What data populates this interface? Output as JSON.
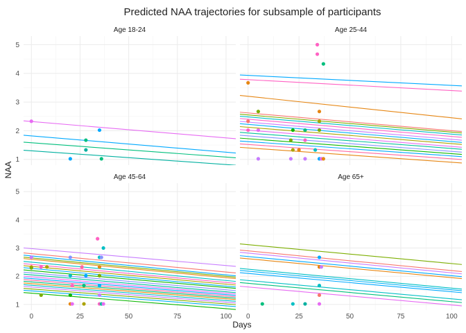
{
  "chart_data": {
    "type": "line",
    "title": "Predicted NAA trajectories for subsample of participants",
    "xlabel": "Days",
    "ylabel": "NAA",
    "xlim": [
      -4,
      105
    ],
    "ylim": [
      0.8,
      5.3
    ],
    "xticks": [
      "0",
      "25",
      "50",
      "75",
      "100"
    ],
    "yticks": [
      "1",
      "2",
      "3",
      "4",
      "5"
    ],
    "grid": true,
    "facets": [
      {
        "label": "Age 18-24",
        "lines": [
          {
            "color": "#E76BF3",
            "y0": 2.32,
            "y1": 1.75
          },
          {
            "color": "#00A9FF",
            "y0": 1.82,
            "y1": 1.25
          },
          {
            "color": "#00BF7D",
            "y0": 1.58,
            "y1": 1.08
          },
          {
            "color": "#00B0A0",
            "y0": 1.3,
            "y1": 0.82
          }
        ],
        "points": [
          {
            "x": 0,
            "y": 2.33,
            "color": "#E76BF3"
          },
          {
            "x": 20,
            "y": 1.02,
            "color": "#00A9FF"
          },
          {
            "x": 28,
            "y": 1.67,
            "color": "#00BF7D"
          },
          {
            "x": 28,
            "y": 1.33,
            "color": "#00B0A0"
          },
          {
            "x": 35,
            "y": 2.02,
            "color": "#00A9FF"
          },
          {
            "x": 36,
            "y": 1.02,
            "color": "#00BF7D"
          }
        ]
      },
      {
        "label": "Age 25-44",
        "lines": [
          {
            "color": "#00A9FF",
            "y0": 3.93,
            "y1": 3.58
          },
          {
            "color": "#FF61C3",
            "y0": 3.78,
            "y1": 3.4
          },
          {
            "color": "#E68613",
            "y0": 3.2,
            "y1": 2.45
          },
          {
            "color": "#F8766D",
            "y0": 2.62,
            "y1": 2.0
          },
          {
            "color": "#7CAE00",
            "y0": 2.55,
            "y1": 1.95
          },
          {
            "color": "#00BFC4",
            "y0": 2.48,
            "y1": 1.88
          },
          {
            "color": "#FF61C3",
            "y0": 2.4,
            "y1": 1.8
          },
          {
            "color": "#C77CFF",
            "y0": 2.3,
            "y1": 1.7
          },
          {
            "color": "#00B0F6",
            "y0": 2.22,
            "y1": 1.62
          },
          {
            "color": "#ABA300",
            "y0": 2.12,
            "y1": 1.55
          },
          {
            "color": "#E76BF3",
            "y0": 2.02,
            "y1": 1.45
          },
          {
            "color": "#00C19A",
            "y0": 1.92,
            "y1": 1.38
          },
          {
            "color": "#8494FF",
            "y0": 1.82,
            "y1": 1.28
          },
          {
            "color": "#0CB702",
            "y0": 1.72,
            "y1": 1.2
          },
          {
            "color": "#00A9FF",
            "y0": 1.62,
            "y1": 1.12
          },
          {
            "color": "#FF68A1",
            "y0": 1.52,
            "y1": 1.02
          },
          {
            "color": "#E68613",
            "y0": 1.4,
            "y1": 0.9
          }
        ],
        "points": [
          {
            "x": 0,
            "y": 3.67,
            "color": "#E68613"
          },
          {
            "x": 0,
            "y": 2.33,
            "color": "#F8766D"
          },
          {
            "x": 0,
            "y": 2.02,
            "color": "#FF61C3"
          },
          {
            "x": 5,
            "y": 2.67,
            "color": "#7CAE00"
          },
          {
            "x": 5,
            "y": 2.02,
            "color": "#E76BF3"
          },
          {
            "x": 5,
            "y": 1.02,
            "color": "#C77CFF"
          },
          {
            "x": 21,
            "y": 1.67,
            "color": "#7CAE00"
          },
          {
            "x": 21,
            "y": 1.02,
            "color": "#C77CFF"
          },
          {
            "x": 22,
            "y": 2.02,
            "color": "#0CB702"
          },
          {
            "x": 22,
            "y": 1.33,
            "color": "#ABA300"
          },
          {
            "x": 25,
            "y": 1.33,
            "color": "#E68613"
          },
          {
            "x": 28,
            "y": 2.02,
            "color": "#00BF7D"
          },
          {
            "x": 28,
            "y": 1.67,
            "color": "#FF61C3"
          },
          {
            "x": 28,
            "y": 1.02,
            "color": "#C77CFF"
          },
          {
            "x": 33,
            "y": 1.33,
            "color": "#00BFC4"
          },
          {
            "x": 34,
            "y": 5.0,
            "color": "#FF61C3"
          },
          {
            "x": 34,
            "y": 4.67,
            "color": "#FF61C3"
          },
          {
            "x": 35,
            "y": 2.67,
            "color": "#E68613"
          },
          {
            "x": 35,
            "y": 2.33,
            "color": "#ABA300"
          },
          {
            "x": 35,
            "y": 2.02,
            "color": "#7CAE00"
          },
          {
            "x": 35,
            "y": 1.02,
            "color": "#00A9FF"
          },
          {
            "x": 36,
            "y": 1.02,
            "color": "#E76BF3"
          },
          {
            "x": 37,
            "y": 4.33,
            "color": "#00BF7D"
          },
          {
            "x": 37,
            "y": 1.02,
            "color": "#E68613"
          }
        ]
      },
      {
        "label": "Age 45-64",
        "lines": [
          {
            "color": "#C77CFF",
            "y0": 2.98,
            "y1": 2.38
          },
          {
            "color": "#F8766D",
            "y0": 2.8,
            "y1": 2.15
          },
          {
            "color": "#00A9FF",
            "y0": 2.72,
            "y1": 2.05
          },
          {
            "color": "#7CAE00",
            "y0": 2.65,
            "y1": 2.0
          },
          {
            "color": "#E68613",
            "y0": 2.6,
            "y1": 1.95
          },
          {
            "color": "#00BFC4",
            "y0": 2.5,
            "y1": 1.85
          },
          {
            "color": "#FF61C3",
            "y0": 2.42,
            "y1": 1.78
          },
          {
            "color": "#ABA300",
            "y0": 2.35,
            "y1": 1.72
          },
          {
            "color": "#00B0F6",
            "y0": 2.28,
            "y1": 1.65
          },
          {
            "color": "#0CB702",
            "y0": 2.2,
            "y1": 1.6
          },
          {
            "color": "#8494FF",
            "y0": 2.12,
            "y1": 1.52
          },
          {
            "color": "#00C19A",
            "y0": 2.05,
            "y1": 1.45
          },
          {
            "color": "#E76BF3",
            "y0": 1.98,
            "y1": 1.4
          },
          {
            "color": "#00A9FF",
            "y0": 1.92,
            "y1": 1.35
          },
          {
            "color": "#FF68A1",
            "y0": 1.86,
            "y1": 1.3
          },
          {
            "color": "#00BF7D",
            "y0": 1.8,
            "y1": 1.25
          },
          {
            "color": "#E68613",
            "y0": 1.74,
            "y1": 1.2
          },
          {
            "color": "#00BFC4",
            "y0": 1.68,
            "y1": 1.14
          },
          {
            "color": "#C77CFF",
            "y0": 1.62,
            "y1": 1.08
          },
          {
            "color": "#7CAE00",
            "y0": 1.55,
            "y1": 1.02
          },
          {
            "color": "#00B0F6",
            "y0": 1.48,
            "y1": 0.95
          },
          {
            "color": "#0CB702",
            "y0": 1.4,
            "y1": 0.85
          }
        ],
        "points": [
          {
            "x": 0,
            "y": 2.67,
            "color": "#C77CFF"
          },
          {
            "x": 0,
            "y": 2.33,
            "color": "#E68613"
          },
          {
            "x": 0,
            "y": 2.3,
            "color": "#7CAE00"
          },
          {
            "x": 5,
            "y": 2.33,
            "color": "#FF61C3"
          },
          {
            "x": 5,
            "y": 1.33,
            "color": "#7CAE00"
          },
          {
            "x": 8,
            "y": 2.33,
            "color": "#ABA300"
          },
          {
            "x": 20,
            "y": 2.67,
            "color": "#8494FF"
          },
          {
            "x": 20,
            "y": 2.02,
            "color": "#00BFC4"
          },
          {
            "x": 20,
            "y": 1.33,
            "color": "#0CB702"
          },
          {
            "x": 20,
            "y": 1.02,
            "color": "#E68613"
          },
          {
            "x": 21,
            "y": 1.67,
            "color": "#FF61C3"
          },
          {
            "x": 21,
            "y": 1.02,
            "color": "#E76BF3"
          },
          {
            "x": 26,
            "y": 2.33,
            "color": "#FF68A1"
          },
          {
            "x": 27,
            "y": 1.67,
            "color": "#00BF7D"
          },
          {
            "x": 27,
            "y": 1.02,
            "color": "#ABA300"
          },
          {
            "x": 28,
            "y": 2.02,
            "color": "#00A9FF"
          },
          {
            "x": 34,
            "y": 3.33,
            "color": "#FF61C3"
          },
          {
            "x": 35,
            "y": 2.67,
            "color": "#00BFC4"
          },
          {
            "x": 35,
            "y": 2.33,
            "color": "#E68613"
          },
          {
            "x": 35,
            "y": 2.02,
            "color": "#7CAE00"
          },
          {
            "x": 35,
            "y": 1.67,
            "color": "#00B0F6"
          },
          {
            "x": 35,
            "y": 1.33,
            "color": "#C77CFF"
          },
          {
            "x": 35,
            "y": 1.02,
            "color": "#FF61C3"
          },
          {
            "x": 36,
            "y": 2.67,
            "color": "#8494FF"
          },
          {
            "x": 36,
            "y": 1.02,
            "color": "#00C19A"
          },
          {
            "x": 37,
            "y": 3.0,
            "color": "#00BFC4"
          },
          {
            "x": 37,
            "y": 1.02,
            "color": "#E76BF3"
          }
        ]
      },
      {
        "label": "Age 65+",
        "lines": [
          {
            "color": "#7CAE00",
            "y0": 3.12,
            "y1": 2.45
          },
          {
            "color": "#F8766D",
            "y0": 2.9,
            "y1": 2.2
          },
          {
            "color": "#C77CFF",
            "y0": 2.82,
            "y1": 2.12
          },
          {
            "color": "#00A9FF",
            "y0": 2.7,
            "y1": 2.02
          },
          {
            "color": "#E68613",
            "y0": 2.62,
            "y1": 1.95
          },
          {
            "color": "#00BFC4",
            "y0": 2.25,
            "y1": 1.58
          },
          {
            "color": "#00B0F6",
            "y0": 2.18,
            "y1": 1.52
          },
          {
            "color": "#00A9FF",
            "y0": 2.1,
            "y1": 1.45
          },
          {
            "color": "#00BFC4",
            "y0": 1.85,
            "y1": 1.2
          },
          {
            "color": "#00BF7D",
            "y0": 1.75,
            "y1": 1.1
          },
          {
            "color": "#E76BF3",
            "y0": 1.62,
            "y1": 0.98
          }
        ],
        "points": [
          {
            "x": 7,
            "y": 1.02,
            "color": "#00BF7D"
          },
          {
            "x": 22,
            "y": 1.02,
            "color": "#00BFC4"
          },
          {
            "x": 28,
            "y": 1.02,
            "color": "#00B0A0"
          },
          {
            "x": 35,
            "y": 2.67,
            "color": "#00A9FF"
          },
          {
            "x": 35,
            "y": 2.33,
            "color": "#E68613"
          },
          {
            "x": 35,
            "y": 1.67,
            "color": "#00BFC4"
          },
          {
            "x": 35,
            "y": 1.33,
            "color": "#F8766D"
          },
          {
            "x": 35,
            "y": 1.02,
            "color": "#E76BF3"
          },
          {
            "x": 36,
            "y": 2.33,
            "color": "#C77CFF"
          }
        ]
      }
    ]
  }
}
